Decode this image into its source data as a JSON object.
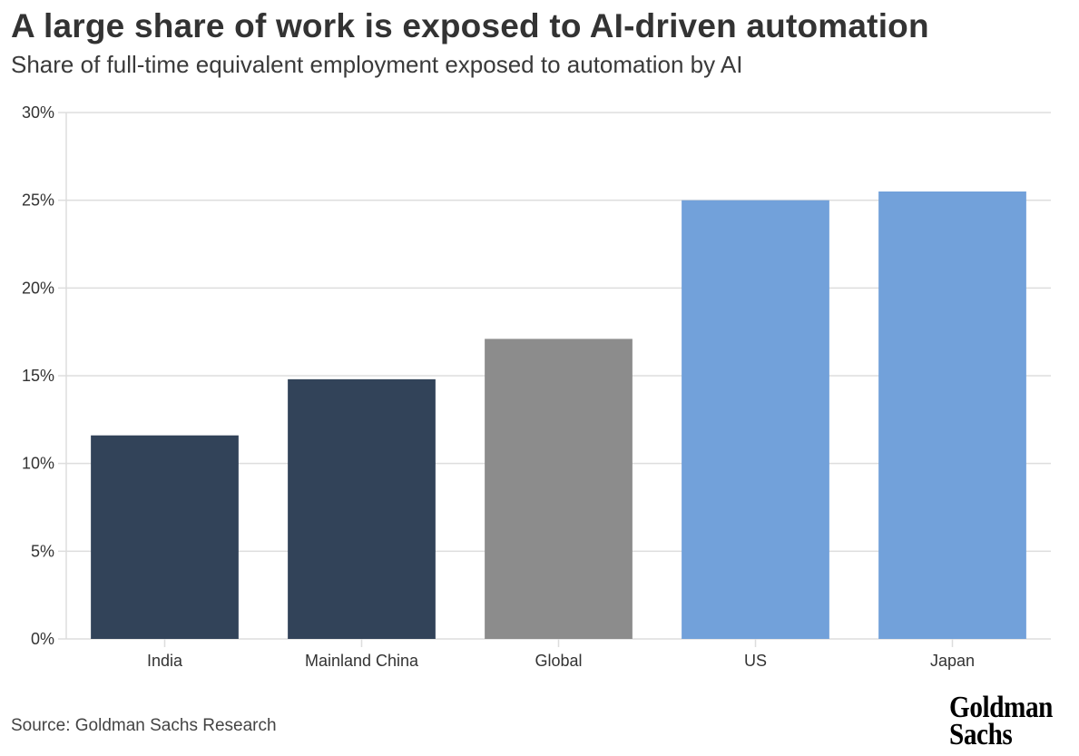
{
  "header": {
    "title": "A large share of work is exposed to AI-driven automation",
    "subtitle": "Share of full-time equivalent employment exposed to automation by AI"
  },
  "footer": {
    "source": "Source: Goldman Sachs Research",
    "logo_line1": "Goldman",
    "logo_line2": "Sachs"
  },
  "chart_data": {
    "type": "bar",
    "title": "A large share of work is exposed to AI-driven automation",
    "subtitle": "Share of full-time equivalent employment exposed to automation by AI",
    "xlabel": "",
    "ylabel": "",
    "categories": [
      "India",
      "Mainland China",
      "Global",
      "US",
      "Japan"
    ],
    "values": [
      11.6,
      14.8,
      17.1,
      25.0,
      25.5
    ],
    "unit": "%",
    "colors": [
      "#324359",
      "#324359",
      "#8c8c8c",
      "#72a1da",
      "#72a1da"
    ],
    "ylim": [
      0,
      30
    ],
    "yticks": [
      0,
      5,
      10,
      15,
      20,
      25,
      30
    ],
    "ytick_labels": [
      "0%",
      "5%",
      "10%",
      "15%",
      "20%",
      "25%",
      "30%"
    ],
    "grid": true,
    "grid_color": "#dddddd",
    "legend": "none",
    "source": "Source: Goldman Sachs Research"
  }
}
